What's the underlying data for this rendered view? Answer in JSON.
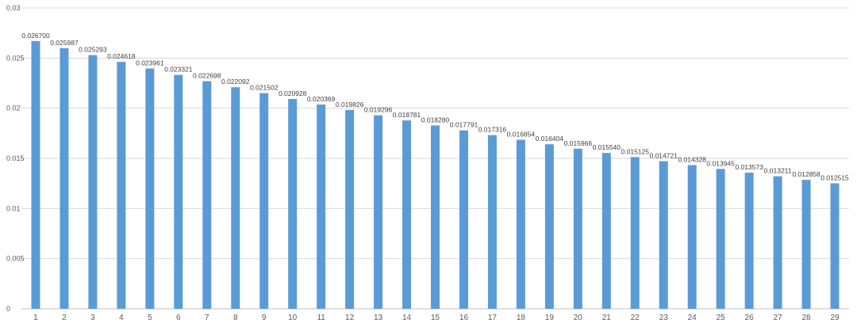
{
  "chart_data": {
    "type": "bar",
    "categories": [
      "1",
      "2",
      "3",
      "4",
      "5",
      "6",
      "7",
      "8",
      "9",
      "10",
      "11",
      "12",
      "13",
      "14",
      "15",
      "16",
      "17",
      "18",
      "19",
      "20",
      "21",
      "22",
      "23",
      "24",
      "25",
      "26",
      "27",
      "28",
      "29"
    ],
    "values": [
      0.0267,
      0.025987,
      0.025293,
      0.024618,
      0.023961,
      0.023321,
      0.022698,
      0.022092,
      0.021502,
      0.020928,
      0.020369,
      0.019826,
      0.019296,
      0.018781,
      0.01828,
      0.017791,
      0.017316,
      0.016854,
      0.016404,
      0.015966,
      0.01554,
      0.015125,
      0.014721,
      0.014328,
      0.013945,
      0.013573,
      0.013211,
      0.012858,
      0.012515
    ],
    "data_labels": [
      "0.026700",
      "0.025987",
      "0.025293",
      "0.024618",
      "0.023961",
      "0.023321",
      "0.022698",
      "0.022092",
      "0.021502",
      "0.020928",
      "0.020369",
      "0.019826",
      "0.019296",
      "0.018781",
      "0.018280",
      "0.017791",
      "0.017316",
      "0.016854",
      "0.016404",
      "0.015966",
      "0.015540",
      "0.015125",
      "0.014721",
      "0.014328",
      "0.013945",
      "0.013573",
      "0.013211",
      "0.012858",
      "0.012515"
    ],
    "y_ticks": [
      0,
      0.005,
      0.01,
      0.015,
      0.02,
      0.025,
      0.03
    ],
    "y_tick_labels": [
      "0",
      "0.005",
      "0.01",
      "0.015",
      "0.02",
      "0.025",
      "0.03"
    ],
    "ylim": [
      0,
      0.03
    ],
    "grid": true,
    "bar_color": "#5b9bd5",
    "title": "",
    "xlabel": "",
    "ylabel": ""
  }
}
